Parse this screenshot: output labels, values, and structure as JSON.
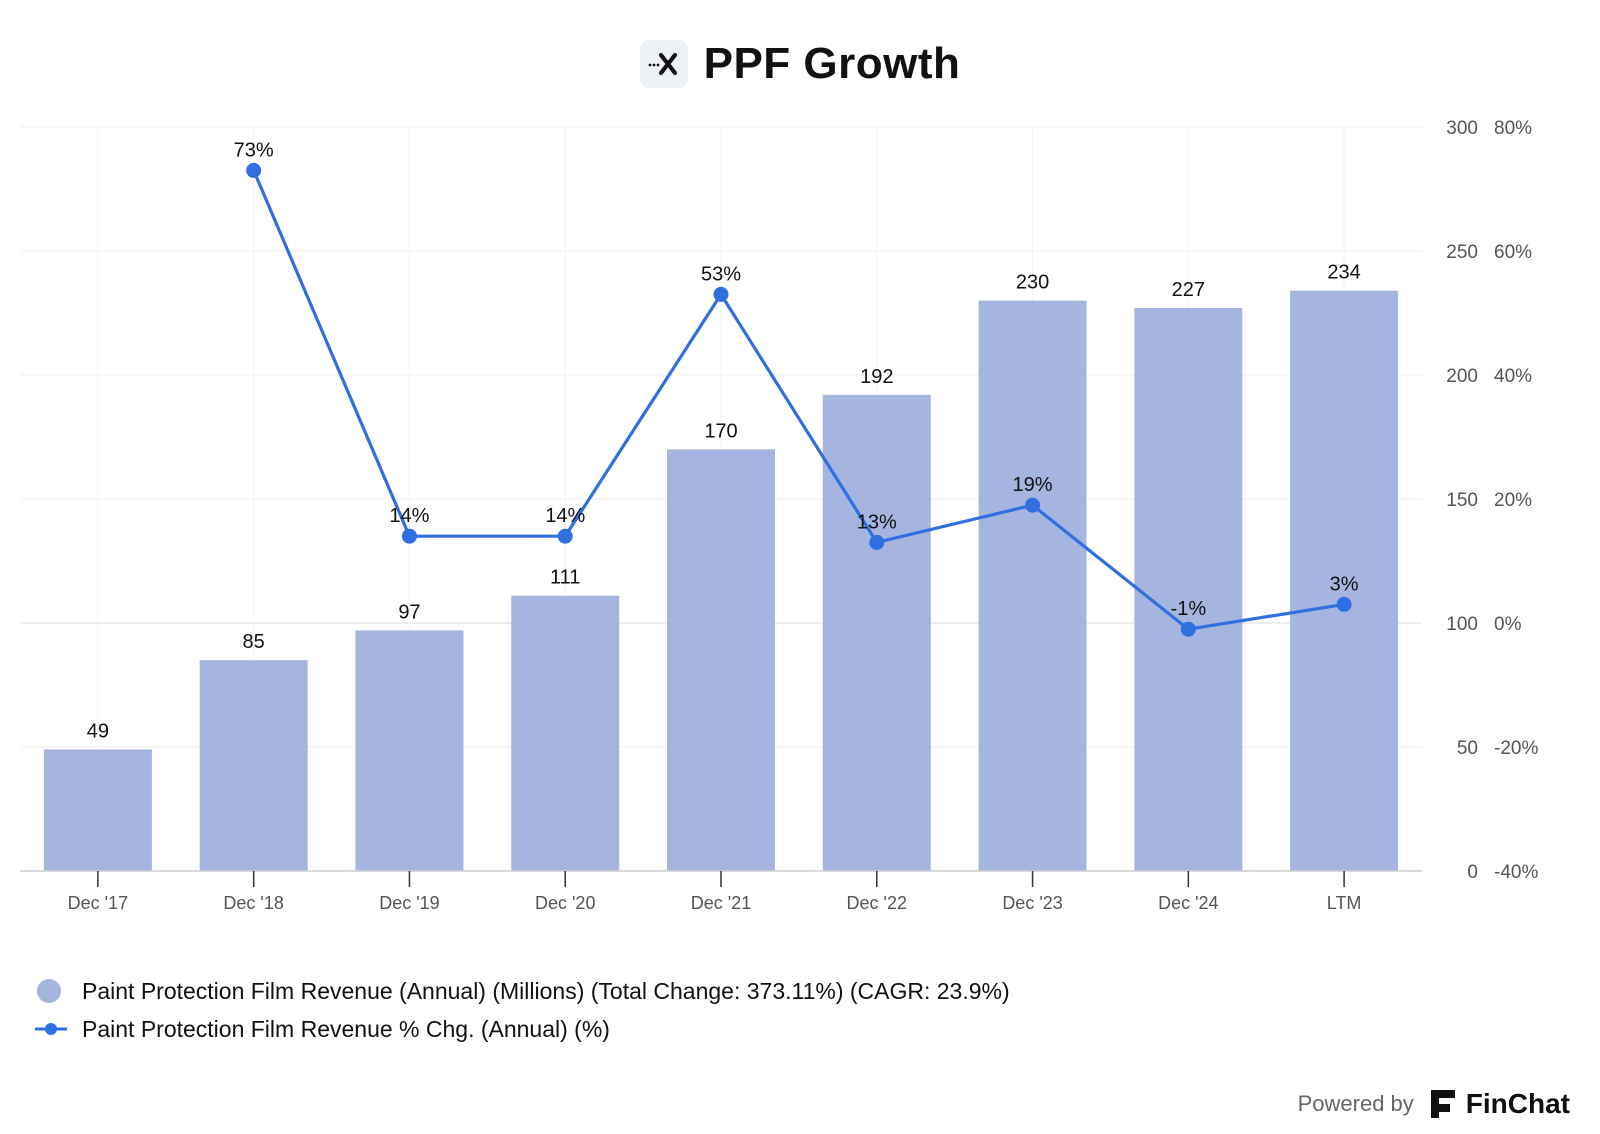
{
  "header": {
    "title": "PPF Growth",
    "logo_icon": "finchat-x-logo-icon"
  },
  "chart_data": {
    "type": "bar",
    "title": "PPF Growth",
    "categories": [
      "Dec '17",
      "Dec '18",
      "Dec '19",
      "Dec '20",
      "Dec '21",
      "Dec '22",
      "Dec '23",
      "Dec '24",
      "LTM"
    ],
    "series": [
      {
        "name": "Paint Protection Film Revenue (Annual) (Millions) (Total Change: 373.11%) (CAGR: 23.9%)",
        "type": "bar",
        "axis": "left",
        "color": "#a5b5e0",
        "values": [
          49,
          85,
          97,
          111,
          170,
          192,
          230,
          227,
          234
        ],
        "labels": [
          "49",
          "85",
          "97",
          "111",
          "170",
          "192",
          "230",
          "227",
          "234"
        ]
      },
      {
        "name": "Paint Protection Film Revenue % Chg. (Annual) (%)",
        "type": "line",
        "axis": "right",
        "color": "#2f6fe0",
        "values": [
          null,
          73,
          14,
          14,
          53,
          13,
          19,
          -1,
          3
        ],
        "labels": [
          "",
          "73%",
          "14%",
          "14%",
          "53%",
          "13%",
          "19%",
          "-1%",
          "3%"
        ]
      }
    ],
    "y_left": {
      "ylim": [
        0,
        300
      ],
      "ticks": [
        "300",
        "250",
        "200",
        "150",
        "100",
        "50",
        "0"
      ],
      "tick_values": [
        300,
        250,
        200,
        150,
        100,
        50,
        0
      ]
    },
    "y_right": {
      "ylim": [
        -40,
        80
      ],
      "ticks": [
        "80%",
        "60%",
        "40%",
        "20%",
        "0%",
        "-20%",
        "-40%"
      ],
      "tick_values": [
        80,
        60,
        40,
        20,
        0,
        -20,
        -40
      ]
    },
    "grid": true,
    "legend_position": "bottom-left"
  },
  "legend": {
    "items": [
      {
        "label": "Paint Protection Film Revenue (Annual) (Millions) (Total Change: 373.11%) (CAGR: 23.9%)"
      },
      {
        "label": "Paint Protection Film Revenue % Chg. (Annual) (%)"
      }
    ]
  },
  "footer": {
    "powered_by": "Powered by",
    "brand": "FinChat"
  }
}
